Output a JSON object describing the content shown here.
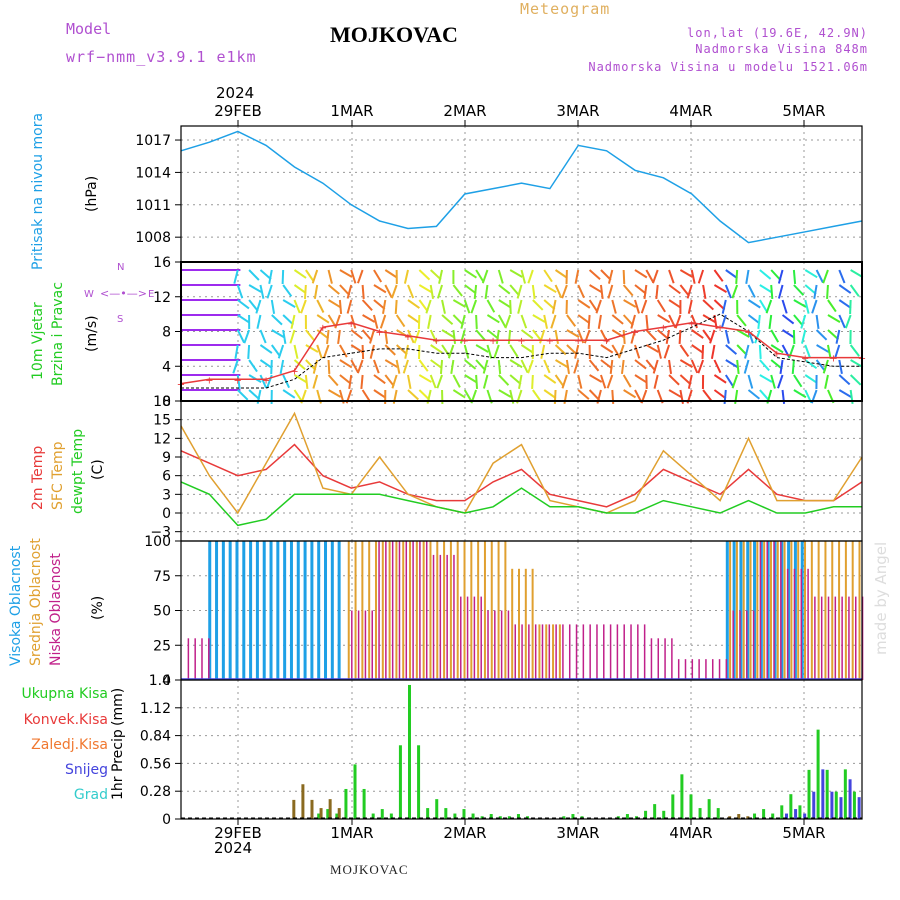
{
  "header": {
    "model_label": "Model",
    "model_name": "wrf−nmm_v3.9.1  e1km",
    "title": "MOJKOVAC",
    "subtitle": "Meteogram",
    "coords": "lon,lat (19.6E, 42.9N)",
    "elev": "Nadmorska Visina 848m",
    "elev_model": "Nadmorska Visina u modelu 1521.06m",
    "footer": "MOJKOVAC",
    "watermark": "made by Angel"
  },
  "colors": {
    "pressure": "#1ea0e6",
    "temp2m": "#e83a3a",
    "sfc": "#e0a030",
    "dew": "#22cc22",
    "high": "#1ea0e6",
    "mid": "#e0a030",
    "low": "#c0208a",
    "total": "#22cc22",
    "conv": "#e83a3a",
    "frozen": "#f07830",
    "snow": "#4444dd",
    "graupel": "#33cccc",
    "label_purple": "#b050d0"
  },
  "chart_data": [
    {
      "type": "line",
      "panel": "pressure",
      "ylabel_left": "Pritisak na nivou mora",
      "ylabel_units": "(hPa)",
      "yticks": [
        "1017",
        "1014",
        "1011",
        "1008"
      ],
      "ylim": [
        1005.7,
        1018.3
      ],
      "x": [
        0,
        6,
        12,
        18,
        24,
        30,
        36,
        42,
        48,
        54,
        60,
        66,
        72,
        78,
        84,
        90,
        96,
        102,
        108,
        114,
        120,
        126,
        132,
        138,
        144
      ],
      "series": [
        {
          "values": [
            1016.0,
            1016.8,
            1017.8,
            1016.5,
            1014.5,
            1013.0,
            1011.0,
            1009.5,
            1008.8,
            1009.0,
            1012.0,
            1012.5,
            1013.0,
            1012.5,
            1016.5,
            1016.0,
            1014.2,
            1013.5,
            1012.0,
            1009.5,
            1007.5,
            1008.0,
            1008.5,
            1009.0,
            1009.5
          ]
        }
      ]
    },
    {
      "type": "line",
      "panel": "wind",
      "ylabel_left": [
        "10m Vjetar",
        "Brzina i Pravac"
      ],
      "ylabel_units": "(m/s)",
      "yticks": [
        "16",
        "12",
        "8",
        "4",
        "0"
      ],
      "ylim": [
        0,
        16
      ],
      "compass": [
        "W",
        "E",
        "N",
        "S"
      ],
      "x": [
        0,
        6,
        12,
        18,
        24,
        30,
        36,
        42,
        48,
        54,
        60,
        66,
        72,
        78,
        84,
        90,
        96,
        102,
        108,
        114,
        120,
        126,
        132,
        138,
        144
      ],
      "series": [
        {
          "name": "speed",
          "values": [
            1.5,
            1.5,
            1.5,
            1.5,
            2.5,
            5.0,
            5.5,
            6.0,
            6.0,
            5.5,
            5.5,
            5.0,
            5.0,
            5.5,
            5.5,
            5.0,
            6.0,
            7.0,
            8.5,
            10.0,
            8.0,
            5.0,
            4.5,
            4.0,
            4.0
          ]
        },
        {
          "name": "gust",
          "values": [
            2.0,
            2.5,
            2.5,
            2.5,
            3.5,
            8.5,
            9.0,
            8.0,
            7.5,
            7.0,
            7.0,
            7.0,
            7.0,
            7.0,
            7.0,
            7.0,
            8.0,
            8.5,
            9.0,
            8.5,
            8.0,
            5.5,
            5.0,
            5.0,
            5.0
          ]
        }
      ]
    },
    {
      "type": "line",
      "panel": "temperature",
      "ylabel_left": [
        "2m Temp",
        "SFC Temp",
        "dewpt Temp"
      ],
      "ylabel_units": "(C)",
      "yticks": [
        "18",
        "15",
        "12",
        "9",
        "6",
        "3",
        "0",
        "−3"
      ],
      "ylim": [
        -4.5,
        18
      ],
      "x": [
        0,
        6,
        12,
        18,
        24,
        30,
        36,
        42,
        48,
        54,
        60,
        66,
        72,
        78,
        84,
        90,
        96,
        102,
        108,
        114,
        120,
        126,
        132,
        138,
        144
      ],
      "series": [
        {
          "name": "2m Temp",
          "values": [
            10,
            8,
            6,
            7,
            11,
            6,
            4,
            5,
            3,
            2,
            2,
            5,
            7,
            3,
            2,
            1,
            3,
            7,
            5,
            3,
            7,
            3,
            2,
            2,
            5
          ]
        },
        {
          "name": "SFC Temp",
          "values": [
            14,
            6,
            0,
            8,
            16,
            4,
            3,
            9,
            3,
            1,
            0,
            8,
            11,
            2,
            1,
            0,
            2,
            10,
            6,
            2,
            12,
            2,
            2,
            2,
            9
          ]
        },
        {
          "name": "dewpt Temp",
          "values": [
            5,
            3,
            -2,
            -1,
            3,
            3,
            3,
            3,
            2,
            1,
            0,
            1,
            4,
            1,
            1,
            0,
            0,
            2,
            1,
            0,
            2,
            0,
            0,
            1,
            1
          ]
        }
      ]
    },
    {
      "type": "bar",
      "panel": "cloud",
      "ylabel_left": [
        "Visoka Oblacnost",
        "Srednja Oblacnost",
        "Niska Oblacnost"
      ],
      "ylabel_units": "(%)",
      "yticks": [
        "100",
        "75",
        "50",
        "25",
        "0"
      ],
      "ylim": [
        0,
        100
      ],
      "series": [
        {
          "name": "Visoka Oblacnost",
          "values": [
            0,
            100,
            100,
            100,
            100,
            100,
            0,
            0,
            0,
            0,
            0,
            0,
            0,
            0,
            0,
            0,
            0,
            0,
            0,
            0,
            100,
            100,
            100,
            0,
            0
          ]
        },
        {
          "name": "Srednja Oblacnost",
          "values": [
            0,
            0,
            0,
            0,
            0,
            0,
            100,
            100,
            100,
            100,
            100,
            100,
            80,
            40,
            0,
            0,
            0,
            0,
            0,
            0,
            100,
            100,
            100,
            100,
            100
          ]
        },
        {
          "name": "Niska Oblacnost",
          "values": [
            30,
            0,
            0,
            0,
            0,
            0,
            50,
            100,
            100,
            90,
            60,
            50,
            40,
            40,
            40,
            40,
            40,
            30,
            15,
            15,
            50,
            100,
            80,
            60,
            60
          ]
        }
      ]
    },
    {
      "type": "bar",
      "panel": "precip",
      "ylabel_units": [
        "1hr Precip",
        "(mm)"
      ],
      "legend": [
        "Ukupna Kisa",
        "Konvek.Kisa",
        "Zaledj.Kisa",
        "Snijeg",
        "Grad"
      ],
      "yticks": [
        "1.4",
        "1.12",
        "0.84",
        "0.56",
        "0.28",
        "0"
      ],
      "ylim": [
        0,
        1.4
      ],
      "series": [
        {
          "name": "Ukupna Kisa",
          "values": [
            0,
            0,
            0,
            0,
            0,
            0.1,
            0.55,
            0.1,
            1.35,
            0.2,
            0.1,
            0.05,
            0.05,
            0,
            0.05,
            0,
            0.05,
            0.15,
            0.45,
            0.2,
            0,
            0.1,
            0.25,
            0.9,
            0.5
          ]
        },
        {
          "name": "Zaledj.Kisa",
          "values": [
            0,
            0,
            0,
            0,
            0.35,
            0.2,
            0,
            0,
            0,
            0,
            0,
            0,
            0,
            0,
            0,
            0,
            0,
            0,
            0,
            0,
            0.05,
            0,
            0,
            0,
            0
          ]
        },
        {
          "name": "Snijeg",
          "values": [
            0,
            0,
            0,
            0,
            0,
            0,
            0,
            0,
            0,
            0,
            0,
            0,
            0,
            0,
            0,
            0,
            0,
            0,
            0,
            0,
            0,
            0,
            0.1,
            0.5,
            0.4
          ]
        }
      ]
    }
  ],
  "xaxis": {
    "top_year": "2024",
    "bottom_year": "2024",
    "day_labels": [
      "29FEB",
      "1MAR",
      "2MAR",
      "3MAR",
      "4MAR",
      "5MAR"
    ]
  }
}
